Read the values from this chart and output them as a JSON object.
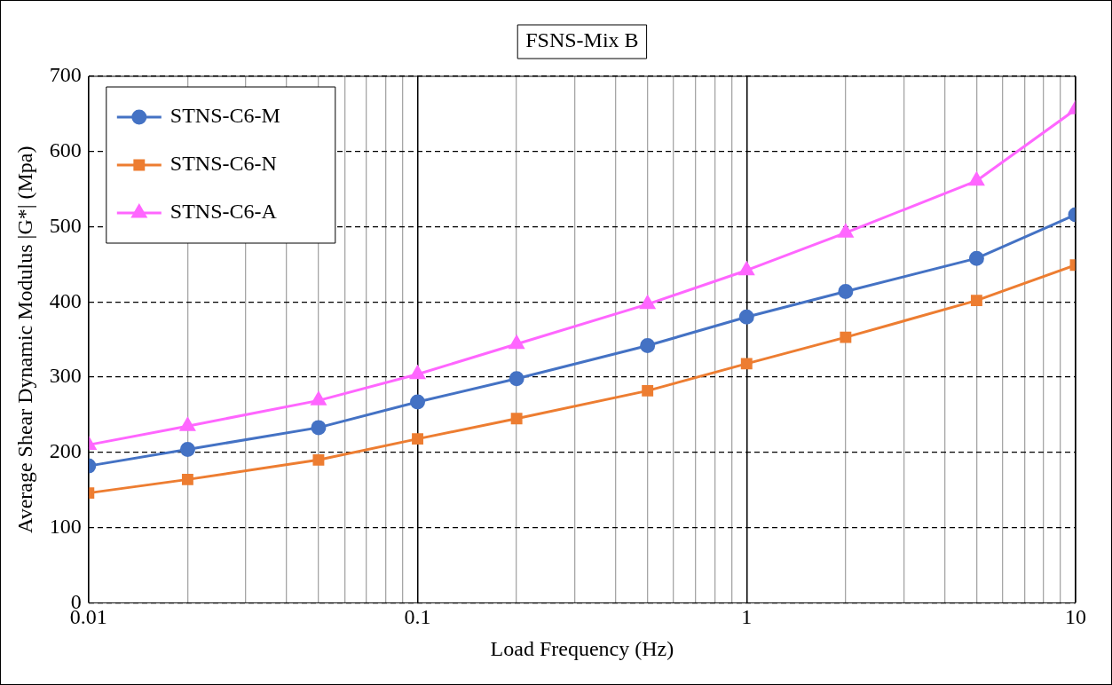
{
  "chart_data": {
    "type": "line",
    "title": "FSNS-Mix B",
    "xlabel": "Load Frequency (Hz)",
    "ylabel": "Average Shear Dynamic Modulus |G*| (Mpa)",
    "x": [
      0.01,
      0.02,
      0.05,
      0.1,
      0.2,
      0.5,
      1,
      2,
      5,
      10
    ],
    "series": [
      {
        "name": "STNS-C6-M",
        "color": "#4472c4",
        "marker": "circle",
        "values": [
          182,
          204,
          233,
          267,
          298,
          342,
          380,
          414,
          458,
          516
        ]
      },
      {
        "name": "STNS-C6-N",
        "color": "#ed7d31",
        "marker": "square",
        "values": [
          146,
          164,
          190,
          218,
          245,
          282,
          318,
          353,
          402,
          449
        ]
      },
      {
        "name": "STNS-C6-A",
        "color": "#ff66ff",
        "marker": "triangle",
        "values": [
          210,
          235,
          269,
          304,
          344,
          397,
          442,
          492,
          561,
          656
        ]
      }
    ],
    "log": "x",
    "xlim": [
      0.01,
      10
    ],
    "xticks": [
      0.01,
      {
        "value": 0.02,
        "label": null
      },
      {
        "value": 0.03,
        "label": null
      },
      {
        "value": 0.04,
        "label": null
      },
      {
        "value": 0.05,
        "label": null
      },
      {
        "value": 0.06,
        "label": null
      },
      {
        "value": 0.07,
        "label": null
      },
      {
        "value": 0.08,
        "label": null
      },
      {
        "value": 0.09,
        "label": null
      },
      0.1,
      {
        "value": 0.2,
        "label": null
      },
      {
        "value": 0.3,
        "label": null
      },
      {
        "value": 0.4,
        "label": null
      },
      {
        "value": 0.5,
        "label": null
      },
      {
        "value": 0.6,
        "label": null
      },
      {
        "value": 0.7,
        "label": null
      },
      {
        "value": 0.8,
        "label": null
      },
      {
        "value": 0.9,
        "label": null
      },
      1,
      {
        "value": 2,
        "label": null
      },
      {
        "value": 3,
        "label": null
      },
      {
        "value": 4,
        "label": null
      },
      {
        "value": 5,
        "label": null
      },
      {
        "value": 6,
        "label": null
      },
      {
        "value": 7,
        "label": null
      },
      {
        "value": 8,
        "label": null
      },
      {
        "value": 9,
        "label": null
      },
      10
    ],
    "ylim": [
      0,
      700
    ],
    "yticks": [
      0,
      100,
      200,
      300,
      400,
      500,
      600,
      700
    ],
    "grid": true,
    "legend": "top left",
    "line_style": "solid"
  }
}
